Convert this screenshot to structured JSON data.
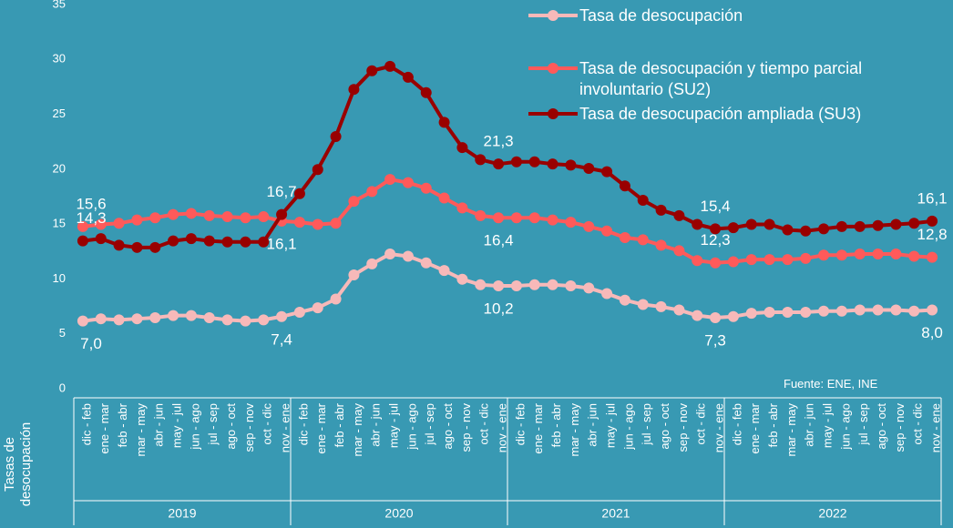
{
  "chart_data": {
    "type": "line",
    "y_axis_label": "Tasas de desocupación",
    "source": "Fuente: ENE, INE",
    "categories": [
      "dic - feb",
      "ene - mar",
      "feb - abr",
      "mar - may",
      "abr - jun",
      "may - jul",
      "jun - ago",
      "jul - sep",
      "ago - oct",
      "sep - nov",
      "oct - dic",
      "nov - ene",
      "dic - feb",
      "ene - mar",
      "feb - abr",
      "mar - may",
      "abr - jun",
      "may - jul",
      "jun - ago",
      "jul - sep",
      "ago - oct",
      "sep - nov",
      "oct - dic",
      "nov - ene",
      "dic - feb",
      "ene - mar",
      "feb - abr",
      "mar - may",
      "abr - jun",
      "may - jul",
      "jun - ago",
      "jul - sep",
      "ago - oct",
      "sep - nov",
      "oct - dic",
      "nov - ene",
      "dic - feb",
      "ene - mar",
      "feb - abr",
      "mar - may",
      "abr - jun",
      "may - jul",
      "jun - ago",
      "jul - sep",
      "ago - oct",
      "sep - nov",
      "oct - dic",
      "nov - ene"
    ],
    "groups": [
      "2019",
      "2020",
      "2021",
      "2022"
    ],
    "ylim": [
      0,
      35
    ],
    "yticks": [
      0,
      5,
      10,
      15,
      20,
      25,
      30,
      35
    ],
    "series": [
      {
        "name": "Tasa de desocupación",
        "color": "#f7b9b9",
        "values": [
          7.0,
          7.2,
          7.1,
          7.2,
          7.3,
          7.5,
          7.5,
          7.3,
          7.1,
          7.0,
          7.1,
          7.4,
          7.8,
          8.2,
          9.0,
          11.2,
          12.2,
          13.1,
          12.9,
          12.3,
          11.6,
          10.8,
          10.3,
          10.2,
          10.2,
          10.3,
          10.3,
          10.2,
          10.0,
          9.5,
          8.9,
          8.5,
          8.3,
          8.0,
          7.5,
          7.3,
          7.4,
          7.7,
          7.8,
          7.8,
          7.8,
          7.9,
          7.9,
          8.0,
          8.0,
          8.0,
          7.9,
          8.0
        ],
        "value_labels": [
          "7,0",
          null,
          null,
          null,
          null,
          null,
          null,
          null,
          null,
          null,
          null,
          "7,4",
          null,
          null,
          null,
          null,
          null,
          null,
          null,
          null,
          null,
          null,
          null,
          "10,2",
          null,
          null,
          null,
          null,
          null,
          null,
          null,
          null,
          null,
          null,
          null,
          "7,3",
          null,
          null,
          null,
          null,
          null,
          null,
          null,
          null,
          null,
          null,
          null,
          "8,0"
        ]
      },
      {
        "name": "Tasa de desocupación y tiempo parcial involuntario (SU2)",
        "color": "#ff5a5a",
        "values": [
          15.6,
          15.8,
          15.9,
          16.2,
          16.4,
          16.7,
          16.8,
          16.6,
          16.5,
          16.4,
          16.5,
          16.1,
          16.0,
          15.8,
          15.9,
          17.9,
          18.8,
          19.9,
          19.6,
          19.1,
          18.2,
          17.3,
          16.6,
          16.4,
          16.4,
          16.4,
          16.2,
          16.0,
          15.6,
          15.2,
          14.6,
          14.4,
          13.9,
          13.4,
          12.5,
          12.3,
          12.4,
          12.6,
          12.6,
          12.6,
          12.7,
          13.0,
          13.0,
          13.1,
          13.1,
          13.1,
          12.9,
          12.8
        ],
        "value_labels": [
          "15,6",
          null,
          null,
          null,
          null,
          null,
          null,
          null,
          null,
          null,
          null,
          "16,1",
          null,
          null,
          null,
          null,
          null,
          null,
          null,
          null,
          null,
          null,
          null,
          "16,4",
          null,
          null,
          null,
          null,
          null,
          null,
          null,
          null,
          null,
          null,
          null,
          "12,3",
          null,
          null,
          null,
          null,
          null,
          null,
          null,
          null,
          null,
          null,
          null,
          "12,8"
        ]
      },
      {
        "name": "Tasa de desocupación ampliada (SU3)",
        "color": "#990000",
        "values": [
          14.3,
          14.5,
          13.9,
          13.7,
          13.7,
          14.3,
          14.5,
          14.3,
          14.2,
          14.2,
          14.2,
          16.7,
          18.6,
          20.8,
          23.8,
          28.1,
          29.8,
          30.2,
          29.2,
          27.8,
          25.1,
          22.8,
          21.7,
          21.3,
          21.5,
          21.5,
          21.3,
          21.2,
          20.9,
          20.6,
          19.3,
          18.0,
          17.1,
          16.6,
          15.8,
          15.4,
          15.5,
          15.8,
          15.8,
          15.3,
          15.2,
          15.4,
          15.6,
          15.6,
          15.7,
          15.8,
          15.9,
          16.1
        ],
        "value_labels": [
          "14,3",
          null,
          null,
          null,
          null,
          null,
          null,
          null,
          null,
          null,
          null,
          "16,7",
          null,
          null,
          null,
          null,
          null,
          null,
          null,
          null,
          null,
          null,
          null,
          "21,3",
          null,
          null,
          null,
          null,
          null,
          null,
          null,
          null,
          null,
          null,
          null,
          "15,4",
          null,
          null,
          null,
          null,
          null,
          null,
          null,
          null,
          null,
          null,
          null,
          "16,1"
        ]
      }
    ]
  }
}
